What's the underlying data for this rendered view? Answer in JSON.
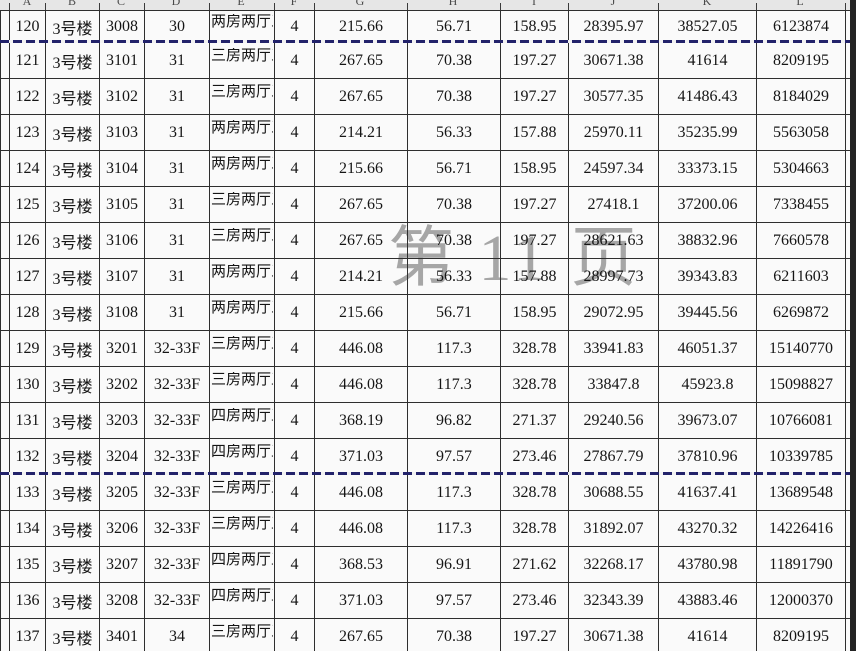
{
  "app": {
    "view": "spreadsheet-page-break-preview"
  },
  "watermark": {
    "text": "第 11 页"
  },
  "column_letters": [
    "A",
    "B",
    "C",
    "D",
    "E",
    "F",
    "G",
    "H",
    "I",
    "J",
    "K",
    "L"
  ],
  "colors": {
    "page_break_line": "#22226a",
    "watermark_gray": "#6e6e6e",
    "grid_line": "#2e2e2e",
    "header_strip": "#e6e6e6"
  },
  "table": {
    "rows": [
      {
        "no": "120",
        "building": "3号楼",
        "room": "3008",
        "floor": "30",
        "layout": "两房两厅三卫",
        "unit": "4",
        "area1": "215.66",
        "area2": "56.71",
        "area3": "158.95",
        "price1": "28395.97",
        "price2": "38527.05",
        "total": "6123874",
        "page_break_after": true
      },
      {
        "no": "121",
        "building": "3号楼",
        "room": "3101",
        "floor": "31",
        "layout": "三房两厅三卫",
        "unit": "4",
        "area1": "267.65",
        "area2": "70.38",
        "area3": "197.27",
        "price1": "30671.38",
        "price2": "41614",
        "total": "8209195",
        "page_break_after": false
      },
      {
        "no": "122",
        "building": "3号楼",
        "room": "3102",
        "floor": "31",
        "layout": "三房两厅三卫",
        "unit": "4",
        "area1": "267.65",
        "area2": "70.38",
        "area3": "197.27",
        "price1": "30577.35",
        "price2": "41486.43",
        "total": "8184029",
        "page_break_after": false
      },
      {
        "no": "123",
        "building": "3号楼",
        "room": "3103",
        "floor": "31",
        "layout": "两房两厅三卫",
        "unit": "4",
        "area1": "214.21",
        "area2": "56.33",
        "area3": "157.88",
        "price1": "25970.11",
        "price2": "35235.99",
        "total": "5563058",
        "page_break_after": false
      },
      {
        "no": "124",
        "building": "3号楼",
        "room": "3104",
        "floor": "31",
        "layout": "两房两厅三卫",
        "unit": "4",
        "area1": "215.66",
        "area2": "56.71",
        "area3": "158.95",
        "price1": "24597.34",
        "price2": "33373.15",
        "total": "5304663",
        "page_break_after": false
      },
      {
        "no": "125",
        "building": "3号楼",
        "room": "3105",
        "floor": "31",
        "layout": "三房两厅三卫",
        "unit": "4",
        "area1": "267.65",
        "area2": "70.38",
        "area3": "197.27",
        "price1": "27418.1",
        "price2": "37200.06",
        "total": "7338455",
        "page_break_after": false
      },
      {
        "no": "126",
        "building": "3号楼",
        "room": "3106",
        "floor": "31",
        "layout": "三房两厅三卫",
        "unit": "4",
        "area1": "267.65",
        "area2": "70.38",
        "area3": "197.27",
        "price1": "28621.63",
        "price2": "38832.96",
        "total": "7660578",
        "page_break_after": false
      },
      {
        "no": "127",
        "building": "3号楼",
        "room": "3107",
        "floor": "31",
        "layout": "两房两厅三卫",
        "unit": "4",
        "area1": "214.21",
        "area2": "56.33",
        "area3": "157.88",
        "price1": "28997.73",
        "price2": "39343.83",
        "total": "6211603",
        "page_break_after": false
      },
      {
        "no": "128",
        "building": "3号楼",
        "room": "3108",
        "floor": "31",
        "layout": "两房两厅三卫",
        "unit": "4",
        "area1": "215.66",
        "area2": "56.71",
        "area3": "158.95",
        "price1": "29072.95",
        "price2": "39445.56",
        "total": "6269872",
        "page_break_after": false
      },
      {
        "no": "129",
        "building": "3号楼",
        "room": "3201",
        "floor": "32-33F",
        "layout": "三房两厅五卫",
        "unit": "4",
        "area1": "446.08",
        "area2": "117.3",
        "area3": "328.78",
        "price1": "33941.83",
        "price2": "46051.37",
        "total": "15140770",
        "page_break_after": false
      },
      {
        "no": "130",
        "building": "3号楼",
        "room": "3202",
        "floor": "32-33F",
        "layout": "三房两厅五卫",
        "unit": "4",
        "area1": "446.08",
        "area2": "117.3",
        "area3": "328.78",
        "price1": "33847.8",
        "price2": "45923.8",
        "total": "15098827",
        "page_break_after": false
      },
      {
        "no": "131",
        "building": "3号楼",
        "room": "3203",
        "floor": "32-33F",
        "layout": "四房两厅五卫",
        "unit": "4",
        "area1": "368.19",
        "area2": "96.82",
        "area3": "271.37",
        "price1": "29240.56",
        "price2": "39673.07",
        "total": "10766081",
        "page_break_after": false
      },
      {
        "no": "132",
        "building": "3号楼",
        "room": "3204",
        "floor": "32-33F",
        "layout": "四房两厅五卫",
        "unit": "4",
        "area1": "371.03",
        "area2": "97.57",
        "area3": "273.46",
        "price1": "27867.79",
        "price2": "37810.96",
        "total": "10339785",
        "page_break_after": true
      },
      {
        "no": "133",
        "building": "3号楼",
        "room": "3205",
        "floor": "32-33F",
        "layout": "三房两厅五卫",
        "unit": "4",
        "area1": "446.08",
        "area2": "117.3",
        "area3": "328.78",
        "price1": "30688.55",
        "price2": "41637.41",
        "total": "13689548",
        "page_break_after": false
      },
      {
        "no": "134",
        "building": "3号楼",
        "room": "3206",
        "floor": "32-33F",
        "layout": "三房两厅五卫",
        "unit": "4",
        "area1": "446.08",
        "area2": "117.3",
        "area3": "328.78",
        "price1": "31892.07",
        "price2": "43270.32",
        "total": "14226416",
        "page_break_after": false
      },
      {
        "no": "135",
        "building": "3号楼",
        "room": "3207",
        "floor": "32-33F",
        "layout": "四房两厅五卫",
        "unit": "4",
        "area1": "368.53",
        "area2": "96.91",
        "area3": "271.62",
        "price1": "32268.17",
        "price2": "43780.98",
        "total": "11891790",
        "page_break_after": false
      },
      {
        "no": "136",
        "building": "3号楼",
        "room": "3208",
        "floor": "32-33F",
        "layout": "四房两厅五卫",
        "unit": "4",
        "area1": "371.03",
        "area2": "97.57",
        "area3": "273.46",
        "price1": "32343.39",
        "price2": "43883.46",
        "total": "12000370",
        "page_break_after": false
      },
      {
        "no": "137",
        "building": "3号楼",
        "room": "3401",
        "floor": "34",
        "layout": "三房两厅三卫",
        "unit": "4",
        "area1": "267.65",
        "area2": "70.38",
        "area3": "197.27",
        "price1": "30671.38",
        "price2": "41614",
        "total": "8209195",
        "page_break_after": false
      }
    ]
  }
}
